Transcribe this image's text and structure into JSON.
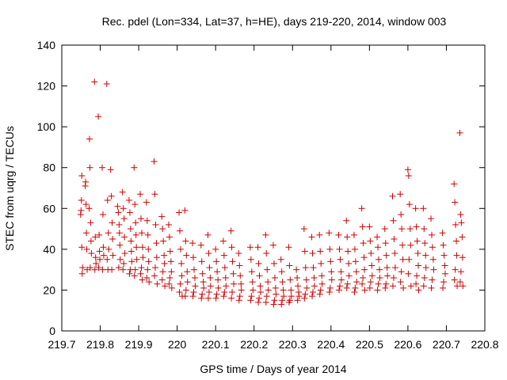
{
  "chart_data": {
    "type": "scatter",
    "title": "Rec. pdel (Lon=334, Lat=37, h=HE), days 219-220, 2014, window 003",
    "xlabel": "GPS time / Days of year 2014",
    "ylabel": "STEC from uqrg / TECUs",
    "xlim": [
      219.7,
      220.8
    ],
    "ylim": [
      0,
      140
    ],
    "x_ticks": [
      "219.7",
      "219.8",
      "219.9",
      "220",
      "220.1",
      "220.2",
      "220.3",
      "220.4",
      "220.5",
      "220.6",
      "220.7",
      "220.8"
    ],
    "y_ticks": [
      "0",
      "20",
      "40",
      "60",
      "80",
      "100",
      "120",
      "140"
    ],
    "grid": false,
    "legend": "none",
    "marker": "plus",
    "series_color": "#cc0000",
    "points": [
      [
        219.752,
        76
      ],
      [
        219.751,
        64
      ],
      [
        219.75,
        59
      ],
      [
        219.749,
        57
      ],
      [
        219.752,
        41
      ],
      [
        219.754,
        31
      ],
      [
        219.753,
        28
      ],
      [
        219.762,
        73
      ],
      [
        219.761,
        71
      ],
      [
        219.763,
        62
      ],
      [
        219.764,
        48
      ],
      [
        219.765,
        40
      ],
      [
        219.766,
        30
      ],
      [
        219.772,
        94
      ],
      [
        219.773,
        80
      ],
      [
        219.771,
        60
      ],
      [
        219.775,
        53
      ],
      [
        219.776,
        44
      ],
      [
        219.777,
        38
      ],
      [
        219.774,
        31
      ],
      [
        219.785,
        122
      ],
      [
        219.787,
        46
      ],
      [
        219.788,
        36
      ],
      [
        219.789,
        33
      ],
      [
        219.786,
        30
      ],
      [
        219.795,
        105
      ],
      [
        219.797,
        47
      ],
      [
        219.798,
        39
      ],
      [
        219.799,
        35
      ],
      [
        219.796,
        31
      ],
      [
        219.805,
        80
      ],
      [
        219.807,
        57
      ],
      [
        219.808,
        41
      ],
      [
        219.809,
        37
      ],
      [
        219.806,
        30
      ],
      [
        219.817,
        121
      ],
      [
        219.819,
        64
      ],
      [
        219.821,
        48
      ],
      [
        219.822,
        40
      ],
      [
        219.818,
        35
      ],
      [
        219.82,
        30
      ],
      [
        219.827,
        79
      ],
      [
        219.829,
        66
      ],
      [
        219.831,
        53
      ],
      [
        219.832,
        45
      ],
      [
        219.833,
        37
      ],
      [
        219.83,
        30
      ],
      [
        219.845,
        61
      ],
      [
        219.847,
        58
      ],
      [
        219.849,
        52
      ],
      [
        219.85,
        48
      ],
      [
        219.851,
        42
      ],
      [
        219.852,
        35
      ],
      [
        219.848,
        31
      ],
      [
        219.858,
        68
      ],
      [
        219.86,
        60
      ],
      [
        219.862,
        55
      ],
      [
        219.863,
        46
      ],
      [
        219.864,
        38
      ],
      [
        219.861,
        33
      ],
      [
        219.859,
        30
      ],
      [
        219.875,
        64
      ],
      [
        219.877,
        58
      ],
      [
        219.879,
        50
      ],
      [
        219.88,
        44
      ],
      [
        219.881,
        39
      ],
      [
        219.882,
        34
      ],
      [
        219.878,
        30
      ],
      [
        219.876,
        28
      ],
      [
        219.888,
        80
      ],
      [
        219.89,
        62
      ],
      [
        219.892,
        53
      ],
      [
        219.893,
        47
      ],
      [
        219.894,
        41
      ],
      [
        219.895,
        35
      ],
      [
        219.891,
        30
      ],
      [
        219.889,
        27
      ],
      [
        219.904,
        67
      ],
      [
        219.906,
        55
      ],
      [
        219.908,
        48
      ],
      [
        219.91,
        41
      ],
      [
        219.911,
        36
      ],
      [
        219.907,
        31
      ],
      [
        219.905,
        28
      ],
      [
        219.909,
        25
      ],
      [
        219.92,
        63
      ],
      [
        219.922,
        54
      ],
      [
        219.924,
        47
      ],
      [
        219.925,
        40
      ],
      [
        219.926,
        34
      ],
      [
        219.923,
        30
      ],
      [
        219.921,
        26
      ],
      [
        219.927,
        24
      ],
      [
        219.94,
        83
      ],
      [
        219.942,
        67
      ],
      [
        219.944,
        52
      ],
      [
        219.946,
        43
      ],
      [
        219.947,
        36
      ],
      [
        219.943,
        31
      ],
      [
        219.941,
        27
      ],
      [
        219.948,
        23
      ],
      [
        219.96,
        56
      ],
      [
        219.962,
        50
      ],
      [
        219.964,
        44
      ],
      [
        219.966,
        37
      ],
      [
        219.967,
        33
      ],
      [
        219.963,
        29
      ],
      [
        219.961,
        25
      ],
      [
        219.968,
        22
      ],
      [
        219.978,
        52
      ],
      [
        219.98,
        46
      ],
      [
        219.982,
        39
      ],
      [
        219.984,
        34
      ],
      [
        219.985,
        29
      ],
      [
        219.981,
        26
      ],
      [
        219.979,
        23
      ],
      [
        219.986,
        21
      ],
      [
        220.005,
        58
      ],
      [
        220.007,
        49
      ],
      [
        220.009,
        40
      ],
      [
        220.011,
        33
      ],
      [
        220.012,
        27
      ],
      [
        220.008,
        23
      ],
      [
        220.006,
        19
      ],
      [
        220.013,
        17
      ],
      [
        220.02,
        59
      ],
      [
        220.022,
        44
      ],
      [
        220.024,
        37
      ],
      [
        220.026,
        29
      ],
      [
        220.027,
        24
      ],
      [
        220.023,
        20
      ],
      [
        220.021,
        17
      ],
      [
        220.04,
        43
      ],
      [
        220.042,
        36
      ],
      [
        220.044,
        30
      ],
      [
        220.046,
        26
      ],
      [
        220.047,
        22
      ],
      [
        220.043,
        19
      ],
      [
        220.041,
        17
      ],
      [
        220.062,
        42
      ],
      [
        220.064,
        34
      ],
      [
        220.066,
        28
      ],
      [
        220.068,
        24
      ],
      [
        220.069,
        21
      ],
      [
        220.065,
        18
      ],
      [
        220.063,
        16
      ],
      [
        220.08,
        47
      ],
      [
        220.082,
        38
      ],
      [
        220.084,
        31
      ],
      [
        220.086,
        26
      ],
      [
        220.087,
        22
      ],
      [
        220.083,
        19
      ],
      [
        220.081,
        16
      ],
      [
        220.1,
        40
      ],
      [
        220.102,
        34
      ],
      [
        220.104,
        29
      ],
      [
        220.106,
        25
      ],
      [
        220.107,
        21
      ],
      [
        220.103,
        18
      ],
      [
        220.101,
        16
      ],
      [
        220.12,
        44
      ],
      [
        220.122,
        37
      ],
      [
        220.124,
        31
      ],
      [
        220.126,
        26
      ],
      [
        220.127,
        22
      ],
      [
        220.123,
        19
      ],
      [
        220.121,
        17
      ],
      [
        220.14,
        49
      ],
      [
        220.142,
        41
      ],
      [
        220.144,
        34
      ],
      [
        220.146,
        28
      ],
      [
        220.147,
        23
      ],
      [
        220.143,
        19
      ],
      [
        220.141,
        16
      ],
      [
        220.16,
        38
      ],
      [
        220.162,
        32
      ],
      [
        220.164,
        27
      ],
      [
        220.166,
        23
      ],
      [
        220.167,
        20
      ],
      [
        220.163,
        17
      ],
      [
        220.161,
        15
      ],
      [
        220.19,
        41
      ],
      [
        220.192,
        35
      ],
      [
        220.194,
        29
      ],
      [
        220.196,
        24
      ],
      [
        220.197,
        20
      ],
      [
        220.193,
        17
      ],
      [
        220.191,
        15
      ],
      [
        220.21,
        41
      ],
      [
        220.212,
        33
      ],
      [
        220.214,
        27
      ],
      [
        220.216,
        22
      ],
      [
        220.217,
        19
      ],
      [
        220.213,
        16
      ],
      [
        220.211,
        14
      ],
      [
        220.23,
        47
      ],
      [
        220.232,
        38
      ],
      [
        220.234,
        30
      ],
      [
        220.236,
        24
      ],
      [
        220.237,
        20
      ],
      [
        220.233,
        17
      ],
      [
        220.231,
        14
      ],
      [
        220.25,
        42
      ],
      [
        220.252,
        33
      ],
      [
        220.254,
        26
      ],
      [
        220.256,
        21
      ],
      [
        220.257,
        18
      ],
      [
        220.253,
        15
      ],
      [
        220.251,
        13
      ],
      [
        220.27,
        35
      ],
      [
        220.272,
        29
      ],
      [
        220.274,
        24
      ],
      [
        220.276,
        20
      ],
      [
        220.277,
        17
      ],
      [
        220.273,
        15
      ],
      [
        220.271,
        13
      ],
      [
        220.29,
        41
      ],
      [
        220.292,
        32
      ],
      [
        220.294,
        25
      ],
      [
        220.296,
        20
      ],
      [
        220.297,
        17
      ],
      [
        220.293,
        15
      ],
      [
        220.291,
        14
      ],
      [
        220.31,
        30
      ],
      [
        220.312,
        26
      ],
      [
        220.314,
        22
      ],
      [
        220.316,
        19
      ],
      [
        220.317,
        17
      ],
      [
        220.313,
        15
      ],
      [
        220.33,
        50
      ],
      [
        220.332,
        39
      ],
      [
        220.334,
        31
      ],
      [
        220.336,
        25
      ],
      [
        220.337,
        21
      ],
      [
        220.333,
        18
      ],
      [
        220.331,
        16
      ],
      [
        220.35,
        46
      ],
      [
        220.352,
        38
      ],
      [
        220.354,
        31
      ],
      [
        220.356,
        26
      ],
      [
        220.357,
        22
      ],
      [
        220.353,
        19
      ],
      [
        220.351,
        17
      ],
      [
        220.37,
        47
      ],
      [
        220.372,
        39
      ],
      [
        220.374,
        33
      ],
      [
        220.376,
        27
      ],
      [
        220.377,
        23
      ],
      [
        220.373,
        20
      ],
      [
        220.371,
        18
      ],
      [
        220.395,
        48
      ],
      [
        220.397,
        40
      ],
      [
        220.399,
        34
      ],
      [
        220.401,
        29
      ],
      [
        220.402,
        25
      ],
      [
        220.398,
        21
      ],
      [
        220.396,
        19
      ],
      [
        220.42,
        47
      ],
      [
        220.422,
        40
      ],
      [
        220.424,
        35
      ],
      [
        220.426,
        29
      ],
      [
        220.427,
        25
      ],
      [
        220.423,
        22
      ],
      [
        220.421,
        20
      ],
      [
        220.44,
        54
      ],
      [
        220.442,
        46
      ],
      [
        220.444,
        39
      ],
      [
        220.446,
        33
      ],
      [
        220.447,
        27
      ],
      [
        220.443,
        23
      ],
      [
        220.441,
        21
      ],
      [
        220.46,
        47
      ],
      [
        220.462,
        40
      ],
      [
        220.464,
        34
      ],
      [
        220.466,
        29
      ],
      [
        220.467,
        24
      ],
      [
        220.463,
        21
      ],
      [
        220.461,
        19
      ],
      [
        220.48,
        60
      ],
      [
        220.482,
        51
      ],
      [
        220.484,
        43
      ],
      [
        220.486,
        36
      ],
      [
        220.487,
        30
      ],
      [
        220.483,
        26
      ],
      [
        220.481,
        23
      ],
      [
        220.488,
        20
      ],
      [
        220.5,
        51
      ],
      [
        220.502,
        44
      ],
      [
        220.504,
        38
      ],
      [
        220.506,
        32
      ],
      [
        220.507,
        27
      ],
      [
        220.503,
        24
      ],
      [
        220.501,
        21
      ],
      [
        220.52,
        46
      ],
      [
        220.522,
        41
      ],
      [
        220.524,
        35
      ],
      [
        220.526,
        30
      ],
      [
        220.527,
        26
      ],
      [
        220.523,
        23
      ],
      [
        220.521,
        20
      ],
      [
        220.54,
        50
      ],
      [
        220.542,
        43
      ],
      [
        220.544,
        37
      ],
      [
        220.546,
        31
      ],
      [
        220.547,
        27
      ],
      [
        220.543,
        23
      ],
      [
        220.541,
        21
      ],
      [
        220.56,
        66
      ],
      [
        220.562,
        54
      ],
      [
        220.564,
        45
      ],
      [
        220.566,
        38
      ],
      [
        220.567,
        31
      ],
      [
        220.563,
        26
      ],
      [
        220.561,
        22
      ],
      [
        220.58,
        67
      ],
      [
        220.582,
        57
      ],
      [
        220.584,
        50
      ],
      [
        220.586,
        42
      ],
      [
        220.587,
        35
      ],
      [
        220.583,
        29
      ],
      [
        220.581,
        24
      ],
      [
        220.588,
        21
      ],
      [
        220.6,
        79
      ],
      [
        220.602,
        76
      ],
      [
        220.604,
        62
      ],
      [
        220.606,
        50
      ],
      [
        220.607,
        42
      ],
      [
        220.603,
        35
      ],
      [
        220.601,
        28
      ],
      [
        220.608,
        22
      ],
      [
        220.62,
        60
      ],
      [
        220.622,
        51
      ],
      [
        220.624,
        44
      ],
      [
        220.626,
        38
      ],
      [
        220.627,
        32
      ],
      [
        220.623,
        27
      ],
      [
        220.621,
        23
      ],
      [
        220.628,
        20
      ],
      [
        220.64,
        60
      ],
      [
        220.642,
        50
      ],
      [
        220.644,
        43
      ],
      [
        220.646,
        37
      ],
      [
        220.647,
        31
      ],
      [
        220.643,
        26
      ],
      [
        220.641,
        22
      ],
      [
        220.66,
        55
      ],
      [
        220.662,
        47
      ],
      [
        220.664,
        41
      ],
      [
        220.666,
        35
      ],
      [
        220.667,
        30
      ],
      [
        220.663,
        25
      ],
      [
        220.661,
        21
      ],
      [
        220.69,
        48
      ],
      [
        220.692,
        42
      ],
      [
        220.694,
        37
      ],
      [
        220.696,
        32
      ],
      [
        220.697,
        28
      ],
      [
        220.693,
        24
      ],
      [
        220.691,
        21
      ],
      [
        220.72,
        72
      ],
      [
        220.722,
        63
      ],
      [
        220.724,
        52
      ],
      [
        220.726,
        44
      ],
      [
        220.727,
        37
      ],
      [
        220.723,
        30
      ],
      [
        220.721,
        25
      ],
      [
        220.728,
        22
      ],
      [
        220.735,
        97
      ],
      [
        220.737,
        57
      ],
      [
        220.739,
        53
      ],
      [
        220.741,
        46
      ],
      [
        220.742,
        36
      ],
      [
        220.738,
        29
      ],
      [
        220.736,
        24
      ],
      [
        220.743,
        22
      ]
    ]
  }
}
